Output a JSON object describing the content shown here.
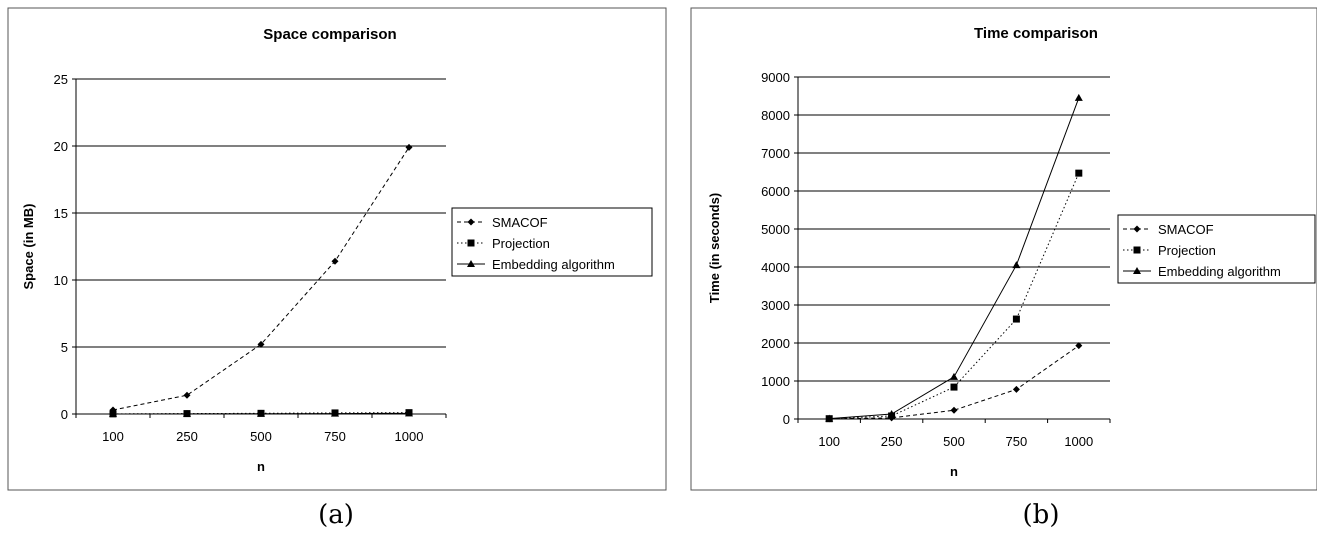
{
  "captions": [
    "(a)",
    "(b)"
  ],
  "chart_data": [
    {
      "type": "line",
      "title": "Space comparison",
      "xlabel": "n",
      "ylabel": "Space (in MB)",
      "categories": [
        "100",
        "250",
        "500",
        "750",
        "1000"
      ],
      "ylim": [
        0,
        25
      ],
      "yticks": [
        0,
        5,
        10,
        15,
        20,
        25
      ],
      "grid": true,
      "legend_position": "right",
      "series": [
        {
          "name": "SMACOF",
          "marker": "diamond",
          "dash": "dashed",
          "values": [
            0.3,
            1.4,
            5.2,
            11.4,
            19.9
          ]
        },
        {
          "name": "Projection",
          "marker": "square",
          "dash": "dotted",
          "values": [
            0.01,
            0.03,
            0.05,
            0.08,
            0.1
          ]
        },
        {
          "name": "Embedding algorithm",
          "marker": "triangle",
          "dash": "solid",
          "values": [
            0.0,
            0.01,
            0.02,
            0.03,
            0.05
          ]
        }
      ]
    },
    {
      "type": "line",
      "title": "Time comparison",
      "xlabel": "n",
      "ylabel": "Time (in seconds)",
      "categories": [
        "100",
        "250",
        "500",
        "750",
        "1000"
      ],
      "ylim": [
        0,
        9000
      ],
      "yticks": [
        0,
        1000,
        2000,
        3000,
        4000,
        5000,
        6000,
        7000,
        8000,
        9000
      ],
      "grid": true,
      "legend_position": "right",
      "series": [
        {
          "name": "SMACOF",
          "marker": "diamond",
          "dash": "dashed",
          "values": [
            5,
            30,
            230,
            780,
            1930
          ]
        },
        {
          "name": "Projection",
          "marker": "square",
          "dash": "dotted",
          "values": [
            8,
            80,
            840,
            2630,
            6470
          ]
        },
        {
          "name": "Embedding algorithm",
          "marker": "triangle",
          "dash": "solid",
          "values": [
            10,
            130,
            1110,
            4050,
            8450
          ]
        }
      ]
    }
  ]
}
